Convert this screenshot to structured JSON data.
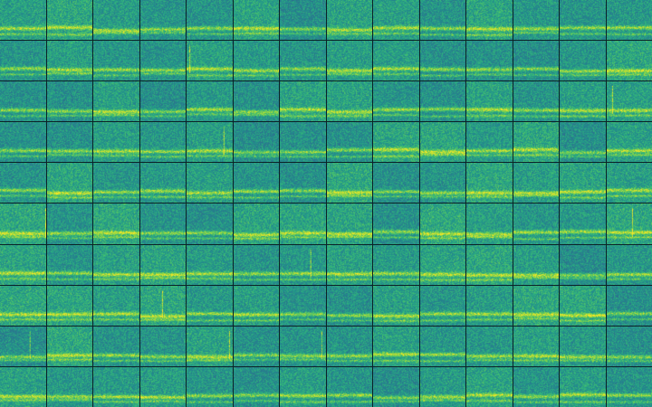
{
  "mosaic": {
    "rows": 10,
    "columns": 14,
    "tile_style": "spectrogram",
    "colormap": [
      "#2c3f7f",
      "#2f6c8e",
      "#21918c",
      "#35b779",
      "#90d743",
      "#fde725"
    ]
  }
}
